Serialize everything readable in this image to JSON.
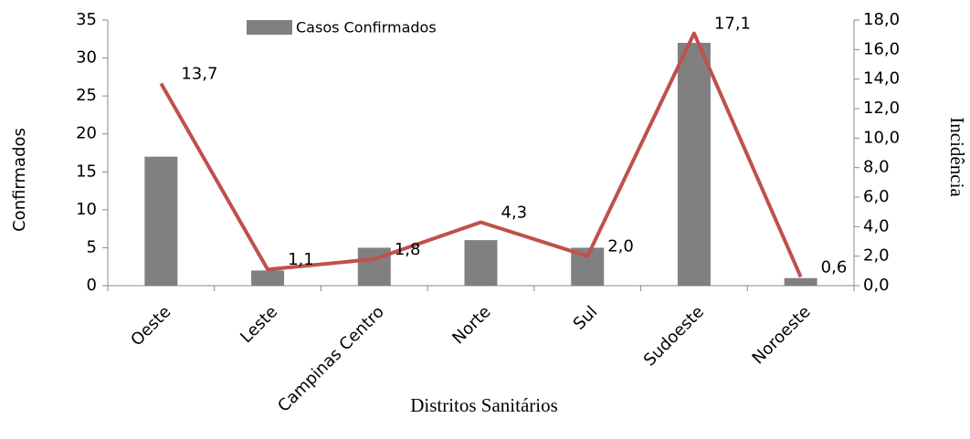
{
  "chart_data": {
    "type": "bar",
    "x_label": "Distritos Sanitários",
    "y_label": "Confirmados",
    "y2_label": "Incidência",
    "categories": [
      "Oeste",
      "Leste",
      "Campinas Centro",
      "Norte",
      "Sul",
      "Sudoeste",
      "Noroeste"
    ],
    "series": [
      {
        "name": "Casos Confirmados",
        "type": "bar",
        "color": "#808080",
        "values": [
          17,
          2,
          5,
          6,
          5,
          32,
          1
        ]
      },
      {
        "type": "line",
        "axis": "y2",
        "color": "#c0504d",
        "values": [
          13.7,
          1.1,
          1.8,
          4.3,
          2.0,
          17.1,
          0.6
        ],
        "value_labels": [
          "13,7",
          "1,1",
          "1,8",
          "4,3",
          "2,0",
          "17,1",
          "0,6"
        ]
      }
    ],
    "ylim": [
      0,
      35
    ],
    "yticks": [
      0,
      5,
      10,
      15,
      20,
      25,
      30,
      35
    ],
    "y2lim": [
      0,
      18
    ],
    "y2ticks": [
      {
        "value": 0,
        "label": "0,0"
      },
      {
        "value": 2,
        "label": "2,0"
      },
      {
        "value": 4,
        "label": "4,0"
      },
      {
        "value": 6,
        "label": "6,0"
      },
      {
        "value": 8,
        "label": "8,0"
      },
      {
        "value": 10,
        "label": "10,0"
      },
      {
        "value": 12,
        "label": "12,0"
      },
      {
        "value": 14,
        "label": "14,0"
      },
      {
        "value": 16,
        "label": "16,0"
      },
      {
        "value": 18,
        "label": "18,0"
      }
    ],
    "legend": "top"
  }
}
